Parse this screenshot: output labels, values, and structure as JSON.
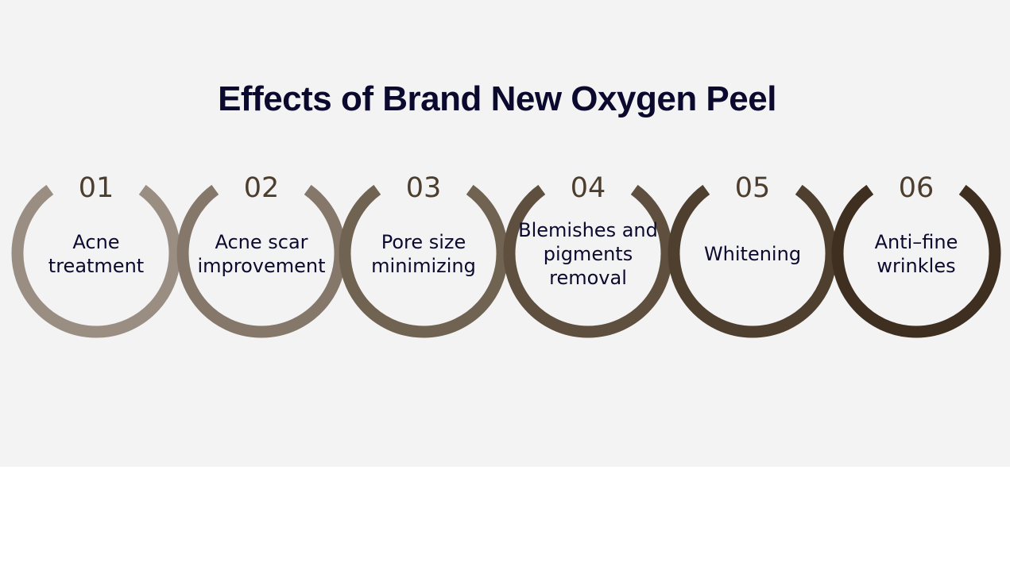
{
  "title": "Effects of Brand New Oxygen Peel",
  "effects": [
    {
      "number": "01",
      "label": "Acne\ntreatment",
      "color": "#9a8e83"
    },
    {
      "number": "02",
      "label": "Acne scar\nimprovement",
      "color": "#85786b"
    },
    {
      "number": "03",
      "label": "Pore size\nminimizing",
      "color": "#716352"
    },
    {
      "number": "04",
      "label": "Blemishes and\npigments\nremoval",
      "color": "#5f4f3e"
    },
    {
      "number": "05",
      "label": "Whitening",
      "color": "#4f3f2f"
    },
    {
      "number": "06",
      "label": "Anti–fine\nwrinkles",
      "color": "#3e2f20"
    }
  ]
}
